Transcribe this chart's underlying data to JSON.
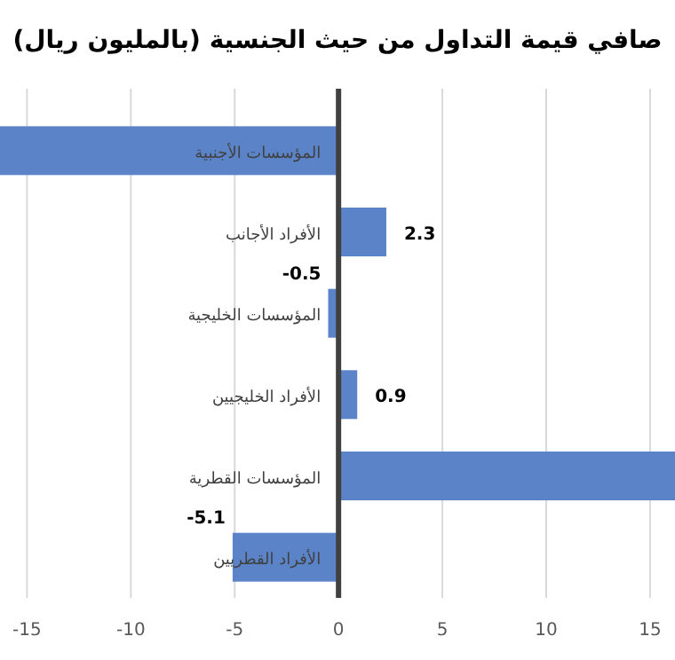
{
  "chart_data": {
    "type": "bar",
    "orientation": "horizontal",
    "title": "صافي قيمة التداول من حيث الجنسية (بالمليون ريال)",
    "categories": [
      "المؤسسات الأجنبية",
      "الأفراد الأجانب",
      "المؤسسات الخليجية",
      "الأفراد الخليجيين",
      "المؤسسات القطرية",
      "الأفراد القطريين"
    ],
    "values": [
      -16.3,
      2.3,
      -0.5,
      0.9,
      16.2,
      -5.1
    ],
    "value_labels": [
      null,
      "2.3",
      "-0.5",
      "0.9",
      null,
      "-5.1"
    ],
    "color": "#5b84c8",
    "xlim": [
      -16.3,
      16.2
    ],
    "xticks": [
      -15,
      -10,
      -5,
      0,
      5,
      10,
      15
    ],
    "grid": "x"
  }
}
